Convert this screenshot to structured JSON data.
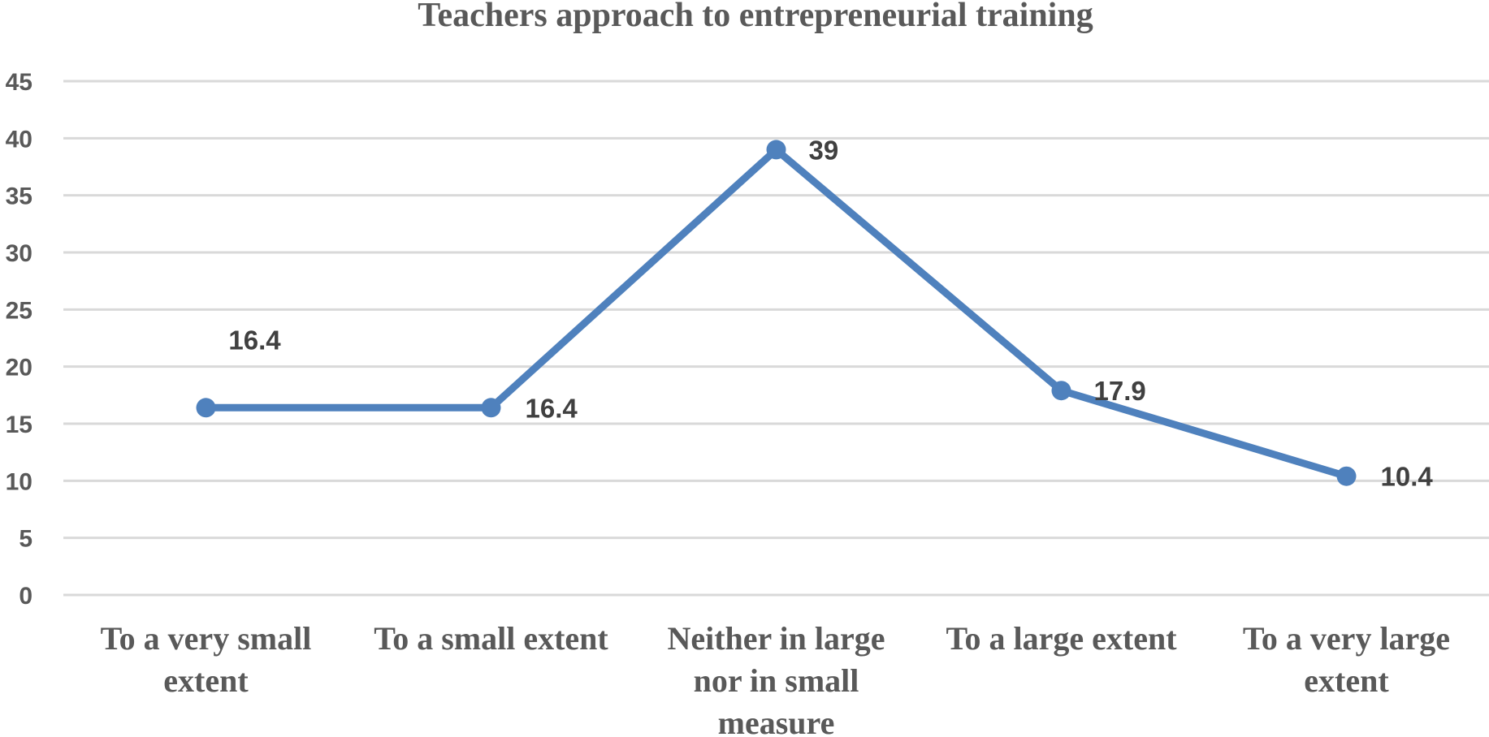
{
  "chart_data": {
    "type": "line",
    "title": "Teachers approach to entrepreneurial training",
    "categories": [
      [
        "To a very small",
        "extent"
      ],
      [
        "To a small extent"
      ],
      [
        "Neither in large",
        "nor in small",
        "measure"
      ],
      [
        "To a large extent"
      ],
      [
        "To a very large",
        "extent"
      ]
    ],
    "series": [
      {
        "values": [
          16.4,
          16.4,
          39,
          17.9,
          10.4
        ]
      }
    ],
    "data_labels": [
      "16.4",
      "16.4",
      "39",
      "17.9",
      "10.4"
    ],
    "ylim": [
      0,
      45
    ],
    "yticks": [
      0,
      5,
      10,
      15,
      20,
      25,
      30,
      35,
      40,
      45
    ],
    "grid": true,
    "legend": "none",
    "colors": {
      "line": "#4f81bd",
      "grid": "#d9d9d9",
      "text": "#595959",
      "label": "#404040"
    }
  }
}
